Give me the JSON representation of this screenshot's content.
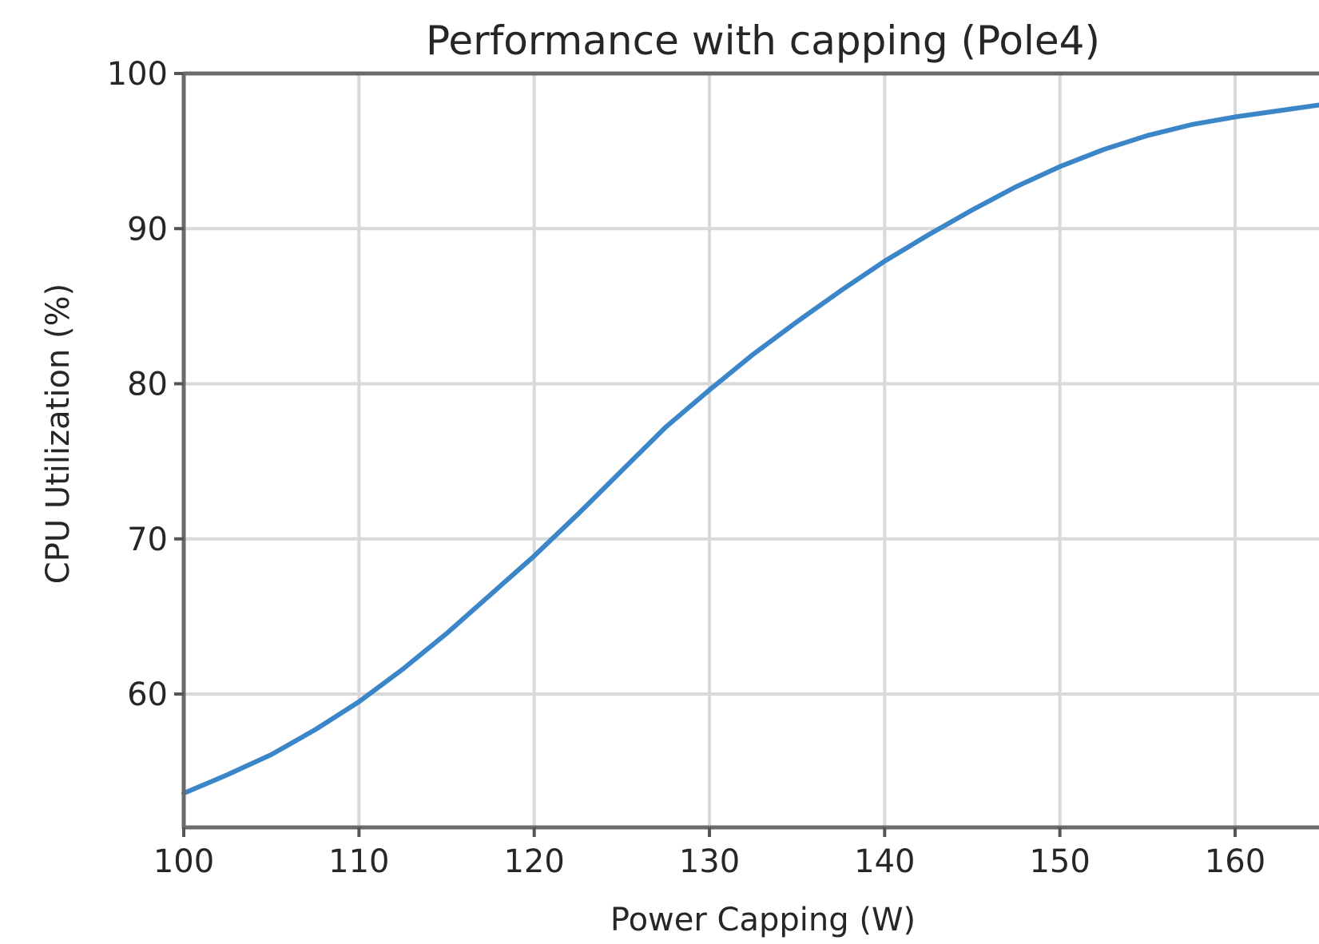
{
  "chart_data": {
    "type": "line",
    "title": "Performance with capping (Pole4)",
    "xlabel": "Power Capping (W)",
    "ylabel": "CPU Utilization (%)",
    "xlim": [
      100,
      165
    ],
    "ylim": [
      51,
      100
    ],
    "x_ticks": [
      100,
      110,
      120,
      130,
      140,
      150,
      160
    ],
    "x_tick_labels": [
      "100",
      "110",
      "120",
      "130",
      "140",
      "150",
      "160"
    ],
    "y_ticks": [
      60,
      70,
      80,
      90,
      100
    ],
    "y_tick_labels": [
      "60",
      "70",
      "80",
      "90",
      "100"
    ],
    "grid": true,
    "legend": "none",
    "series": [
      {
        "color": "#3a86c8",
        "x": [
          100,
          102.5,
          105,
          107.5,
          110,
          112.5,
          115,
          117.5,
          120,
          122.5,
          125,
          127.5,
          130,
          132.5,
          135,
          137.5,
          140,
          142.5,
          145,
          147.5,
          150,
          152.5,
          155,
          157.5,
          160,
          162.5,
          165
        ],
        "y": [
          53.6,
          54.8,
          56.1,
          57.7,
          59.5,
          61.6,
          63.9,
          66.4,
          68.9,
          71.6,
          74.4,
          77.2,
          79.6,
          81.9,
          84.0,
          86.0,
          87.9,
          89.6,
          91.2,
          92.7,
          94.0,
          95.1,
          96.0,
          96.7,
          97.2,
          97.6,
          98.0
        ]
      }
    ]
  }
}
